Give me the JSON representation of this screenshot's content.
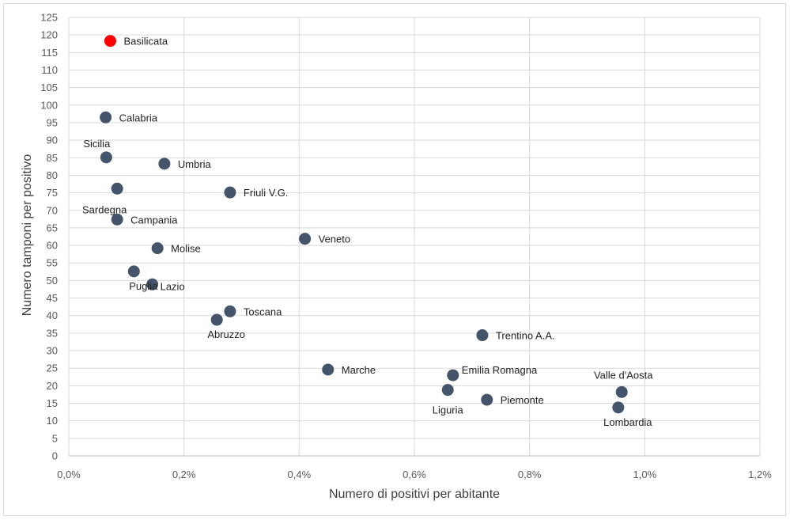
{
  "chart_data": {
    "type": "scatter",
    "title": "",
    "xlabel": "Numero di positivi per abitante",
    "ylabel": "Numero tamponi per positivo",
    "xlim": [
      0,
      0.012
    ],
    "ylim": [
      0,
      125
    ],
    "x_ticks": [
      0,
      0.002,
      0.004,
      0.006,
      0.008,
      0.01,
      0.012
    ],
    "x_tick_labels": [
      "0,0%",
      "0,2%",
      "0,4%",
      "0,6%",
      "0,8%",
      "1,0%",
      "1,2%"
    ],
    "y_ticks": [
      0,
      5,
      10,
      15,
      20,
      25,
      30,
      35,
      40,
      45,
      50,
      55,
      60,
      65,
      70,
      75,
      80,
      85,
      90,
      95,
      100,
      105,
      110,
      115,
      120,
      125
    ],
    "grid": true,
    "colors": {
      "point": "#44546a",
      "highlight": "#ff0000",
      "highlight_label": "#c00000",
      "grid": "#d9d9d9"
    },
    "points": [
      {
        "name": "Basilicata",
        "x": 0.00072,
        "y": 118.3,
        "highlight": true,
        "label_pos": "right"
      },
      {
        "name": "Calabria",
        "x": 0.00064,
        "y": 96.5,
        "label_pos": "right"
      },
      {
        "name": "Sicilia",
        "x": 0.00065,
        "y": 85.1,
        "label_pos": "above-left"
      },
      {
        "name": "Umbria",
        "x": 0.00166,
        "y": 83.3,
        "label_pos": "right"
      },
      {
        "name": "Sardegna",
        "x": 0.00084,
        "y": 76.2,
        "label_pos": "below-left"
      },
      {
        "name": "Friuli V.G.",
        "x": 0.0028,
        "y": 75.1,
        "label_pos": "right"
      },
      {
        "name": "Campania",
        "x": 0.00084,
        "y": 67.4,
        "label_pos": "right"
      },
      {
        "name": "Veneto",
        "x": 0.0041,
        "y": 61.9,
        "label_pos": "right"
      },
      {
        "name": "Molise",
        "x": 0.00154,
        "y": 59.2,
        "label_pos": "right"
      },
      {
        "name": "Puglia",
        "x": 0.00113,
        "y": 52.6,
        "label_pos": "below-right"
      },
      {
        "name": "Lazio",
        "x": 0.00145,
        "y": 48.9,
        "label_pos": "right-tight"
      },
      {
        "name": "Toscana",
        "x": 0.0028,
        "y": 41.2,
        "label_pos": "right"
      },
      {
        "name": "Abruzzo",
        "x": 0.00257,
        "y": 38.8,
        "label_pos": "below-right"
      },
      {
        "name": "Trentino A.A.",
        "x": 0.00718,
        "y": 34.4,
        "label_pos": "right"
      },
      {
        "name": "Marche",
        "x": 0.0045,
        "y": 24.6,
        "label_pos": "right"
      },
      {
        "name": "Emilia Romagna",
        "x": 0.00667,
        "y": 23.0,
        "label_pos": "above-right"
      },
      {
        "name": "Liguria",
        "x": 0.00658,
        "y": 18.8,
        "label_pos": "below"
      },
      {
        "name": "Piemonte",
        "x": 0.00726,
        "y": 16.0,
        "label_pos": "right"
      },
      {
        "name": "Valle d'Aosta",
        "x": 0.0096,
        "y": 18.2,
        "label_pos": "above"
      },
      {
        "name": "Lombardia",
        "x": 0.00954,
        "y": 13.8,
        "label_pos": "below-right"
      }
    ]
  }
}
